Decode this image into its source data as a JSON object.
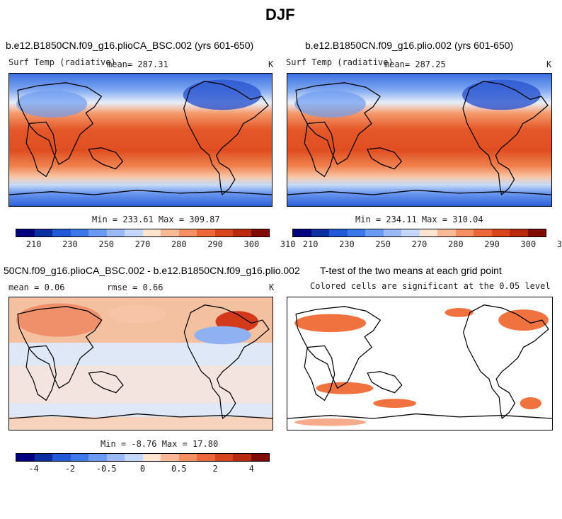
{
  "title": "DJF",
  "panels": [
    {
      "title": "b.e12.B1850CN.f09_g16.plioCA_BSC.002 (yrs 601-650)",
      "variable": "Surf Temp (radiative)",
      "mean": "mean= 287.31",
      "units": "K",
      "minmax": "Min = 233.61 Max = 309.87"
    },
    {
      "title": "b.e12.B1850CN.f09_g16.plio.002 (yrs 601-650)",
      "variable": "Surf Temp (radiative)",
      "mean": "mean= 287.25",
      "units": "K",
      "minmax": "Min = 234.11 Max = 310.04"
    },
    {
      "title": "50CN.f09_g16.plioCA_BSC.002 - b.e12.B1850CN.f09_g16.plio.002",
      "mean": "mean =   0.06",
      "rmse": "rmse =   0.66",
      "units": "K",
      "minmax": "Min = -8.76 Max =  17.80"
    },
    {
      "title": "T-test of the two means at each grid point",
      "subtitle": "Colored cells are significant at the 0.05 level"
    }
  ],
  "colorbar_abs": {
    "colors": [
      "#00007f",
      "#0b2fa0",
      "#2358d6",
      "#3d78ea",
      "#6a9af2",
      "#9ab9f6",
      "#c6d8fa",
      "#ffe4d0",
      "#fbb894",
      "#f59062",
      "#ec683a",
      "#d9451c",
      "#b82a10",
      "#7f0a00"
    ],
    "labels": [
      "210",
      "230",
      "250",
      "270",
      "280",
      "290",
      "300",
      "310"
    ]
  },
  "colorbar_diff": {
    "colors": [
      "#00007f",
      "#0b2fa0",
      "#2358d6",
      "#3d78ea",
      "#6a9af2",
      "#9ab9f6",
      "#c6d8fa",
      "#ffe4d0",
      "#fbb894",
      "#f59062",
      "#ec683a",
      "#d9451c",
      "#b82a10",
      "#7f0a00"
    ],
    "labels": [
      "-4",
      "-2",
      "-0.5",
      "0",
      "0.5",
      "2",
      "4"
    ]
  }
}
